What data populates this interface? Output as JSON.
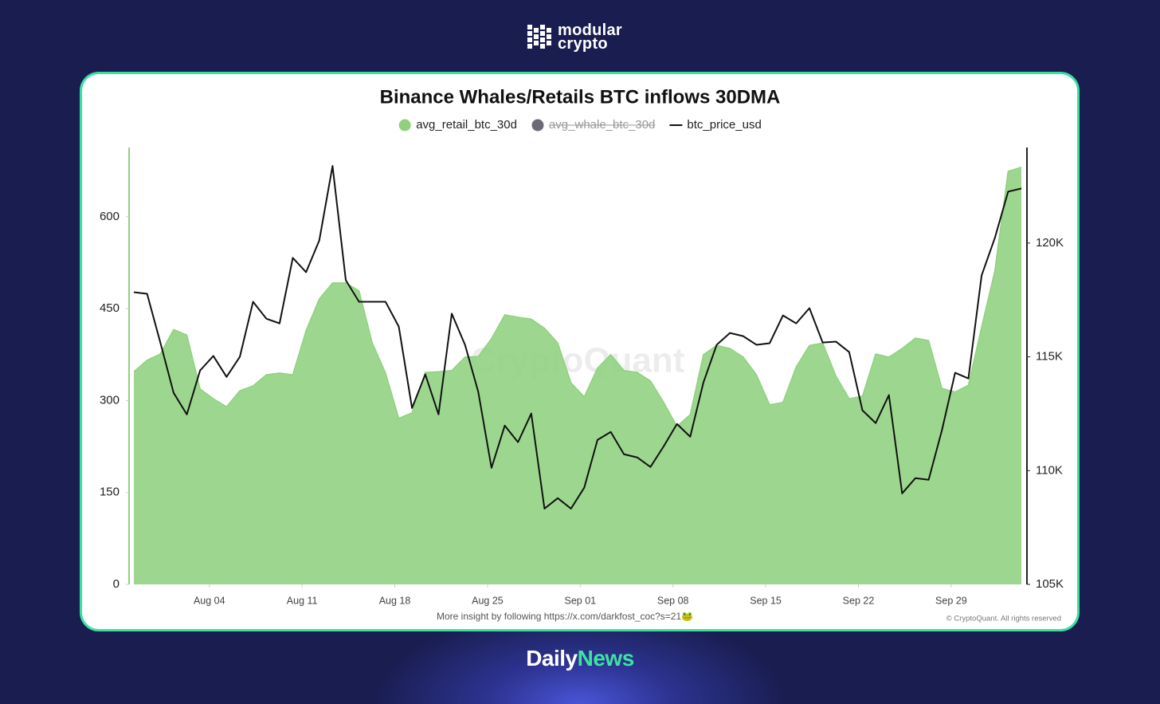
{
  "brand": {
    "line1": "modular",
    "line2": "crypto"
  },
  "footer_brand": {
    "part1": "Daily",
    "part2": "News"
  },
  "chart_data": {
    "type": "area_line",
    "title": "Binance Whales/Retails BTC inflows 30DMA",
    "watermark": "CryptoQuant",
    "note": "More insight by following https://x.com/darkfost_coc?s=21🐸",
    "copyright": "© CryptoQuant. All rights reserved",
    "x": [
      "Jul 29",
      "Jul 30",
      "Jul 31",
      "Aug 01",
      "Aug 02",
      "Aug 03",
      "Aug 04",
      "Aug 05",
      "Aug 06",
      "Aug 07",
      "Aug 08",
      "Aug 09",
      "Aug 10",
      "Aug 11",
      "Aug 12",
      "Aug 13",
      "Aug 14",
      "Aug 15",
      "Aug 16",
      "Aug 17",
      "Aug 18",
      "Aug 19",
      "Aug 20",
      "Aug 21",
      "Aug 22",
      "Aug 23",
      "Aug 24",
      "Aug 25",
      "Aug 26",
      "Aug 27",
      "Aug 28",
      "Aug 29",
      "Aug 30",
      "Aug 31",
      "Sep 01",
      "Sep 02",
      "Sep 03",
      "Sep 04",
      "Sep 05",
      "Sep 06",
      "Sep 07",
      "Sep 08",
      "Sep 09",
      "Sep 10",
      "Sep 11",
      "Sep 12",
      "Sep 13",
      "Sep 14",
      "Sep 15",
      "Sep 16",
      "Sep 17",
      "Sep 18",
      "Sep 19",
      "Sep 20",
      "Sep 21",
      "Sep 22",
      "Sep 23",
      "Sep 24",
      "Sep 25",
      "Sep 26",
      "Sep 27",
      "Sep 28",
      "Sep 29",
      "Sep 30",
      "Oct 01",
      "Oct 02",
      "Oct 03",
      "Oct 04"
    ],
    "xticks": [
      "Aug 04",
      "Aug 11",
      "Aug 18",
      "Aug 25",
      "Sep 01",
      "Sep 08",
      "Sep 15",
      "Sep 22",
      "Sep 29"
    ],
    "ylim": [
      0,
      713
    ],
    "yticks": [
      0,
      150,
      300,
      450,
      600
    ],
    "y2lim": [
      105000,
      124200
    ],
    "y2ticks": [
      {
        "value": 105000,
        "label": "105K"
      },
      {
        "value": 110000,
        "label": "110K"
      },
      {
        "value": 115000,
        "label": "115K"
      },
      {
        "value": 120000,
        "label": "120K"
      }
    ],
    "series": [
      {
        "name": "avg_retail_btc_30d",
        "color": "#8fd17f",
        "style": "area",
        "values": [
          347,
          366,
          376,
          416,
          407,
          319,
          303,
          290,
          316,
          324,
          342,
          345,
          342,
          414,
          466,
          492,
          492,
          479,
          394,
          345,
          271,
          280,
          346,
          347,
          349,
          371,
          372,
          401,
          440,
          436,
          433,
          418,
          394,
          329,
          306,
          353,
          375,
          349,
          346,
          332,
          297,
          258,
          277,
          375,
          390,
          385,
          371,
          342,
          293,
          297,
          355,
          390,
          394,
          340,
          303,
          307,
          376,
          371,
          385,
          402,
          398,
          320,
          314,
          325,
          420,
          512,
          674,
          681
        ]
      },
      {
        "name": "avg_whale_btc_30d",
        "color": "#6b6b78",
        "style": "hidden"
      },
      {
        "name": "btc_price_usd",
        "color": "#111111",
        "style": "line",
        "axis": "y2",
        "values": [
          117840,
          117770,
          115630,
          113420,
          112470,
          114400,
          115040,
          114120,
          115000,
          117420,
          116680,
          116470,
          119350,
          118720,
          120120,
          123390,
          118370,
          117420,
          117420,
          117420,
          116330,
          112750,
          114230,
          112470,
          116900,
          115530,
          113460,
          110120,
          111980,
          111250,
          112510,
          108330,
          108790,
          108330,
          109250,
          111350,
          111700,
          110720,
          110580,
          110160,
          111070,
          112050,
          111490,
          113880,
          115530,
          116050,
          115910,
          115530,
          115600,
          116820,
          116470,
          117140,
          115630,
          115670,
          115210,
          112650,
          112090,
          113320,
          109000,
          109670,
          109600,
          111770,
          114300,
          114050,
          118580,
          120230,
          122260,
          122400
        ]
      }
    ]
  }
}
